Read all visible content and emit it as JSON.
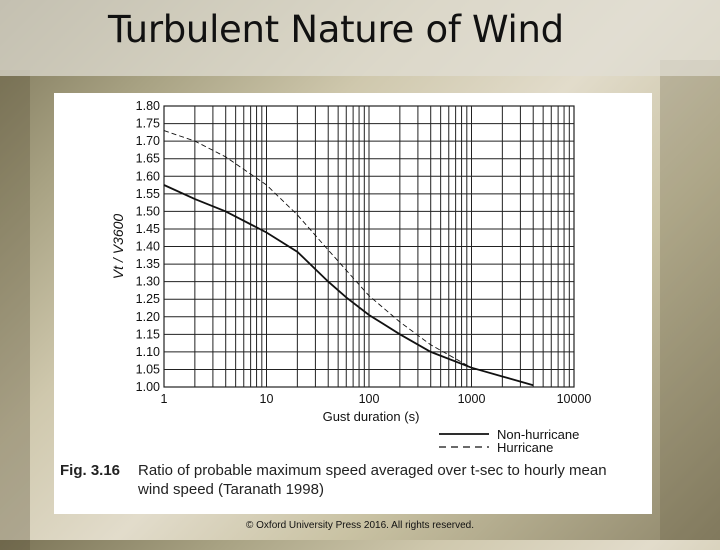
{
  "slide": {
    "title": "Turbulent Nature of Wind",
    "figure_label": "Fig. 3.16",
    "caption_line1": "Ratio of probable maximum speed averaged over t-sec to hourly mean",
    "caption_line2": "wind speed (Taranath 1998)",
    "copyright": "© Oxford University Press 2016. All rights reserved."
  },
  "chart_data": {
    "type": "line",
    "xlabel": "Gust duration (s)",
    "ylabel": "Vt / V3600",
    "xscale": "log",
    "xlim": [
      1,
      10000
    ],
    "ylim": [
      1.0,
      1.8
    ],
    "grid": true,
    "x_ticks": [
      "1",
      "10",
      "100",
      "1000",
      "10000"
    ],
    "y_ticks": [
      "1.80",
      "1.75",
      "1.70",
      "1.65",
      "1.60",
      "1.55",
      "1.50",
      "1.45",
      "1.40",
      "1.35",
      "1.30",
      "1.25",
      "1.20",
      "1.15",
      "1.10",
      "1.05",
      "1.00"
    ],
    "legend_position": "bottom-right",
    "series": [
      {
        "name": "Non-hurricane",
        "style": "solid",
        "points": [
          [
            1,
            1.575
          ],
          [
            2,
            1.535
          ],
          [
            4,
            1.5
          ],
          [
            10,
            1.44
          ],
          [
            20,
            1.385
          ],
          [
            40,
            1.3
          ],
          [
            60,
            1.255
          ],
          [
            100,
            1.205
          ],
          [
            200,
            1.15
          ],
          [
            400,
            1.1
          ],
          [
            1000,
            1.055
          ],
          [
            2000,
            1.03
          ],
          [
            4000,
            1.005
          ]
        ]
      },
      {
        "name": "Hurricane",
        "style": "dashed",
        "points": [
          [
            1,
            1.73
          ],
          [
            2,
            1.7
          ],
          [
            4,
            1.655
          ],
          [
            10,
            1.575
          ],
          [
            20,
            1.49
          ],
          [
            40,
            1.39
          ],
          [
            100,
            1.26
          ],
          [
            200,
            1.185
          ],
          [
            400,
            1.12
          ],
          [
            1000,
            1.055
          ],
          [
            2000,
            1.03
          ]
        ]
      }
    ]
  },
  "colors": {
    "line": "#111111",
    "grid": "#222222",
    "panel": "#ffffff"
  }
}
